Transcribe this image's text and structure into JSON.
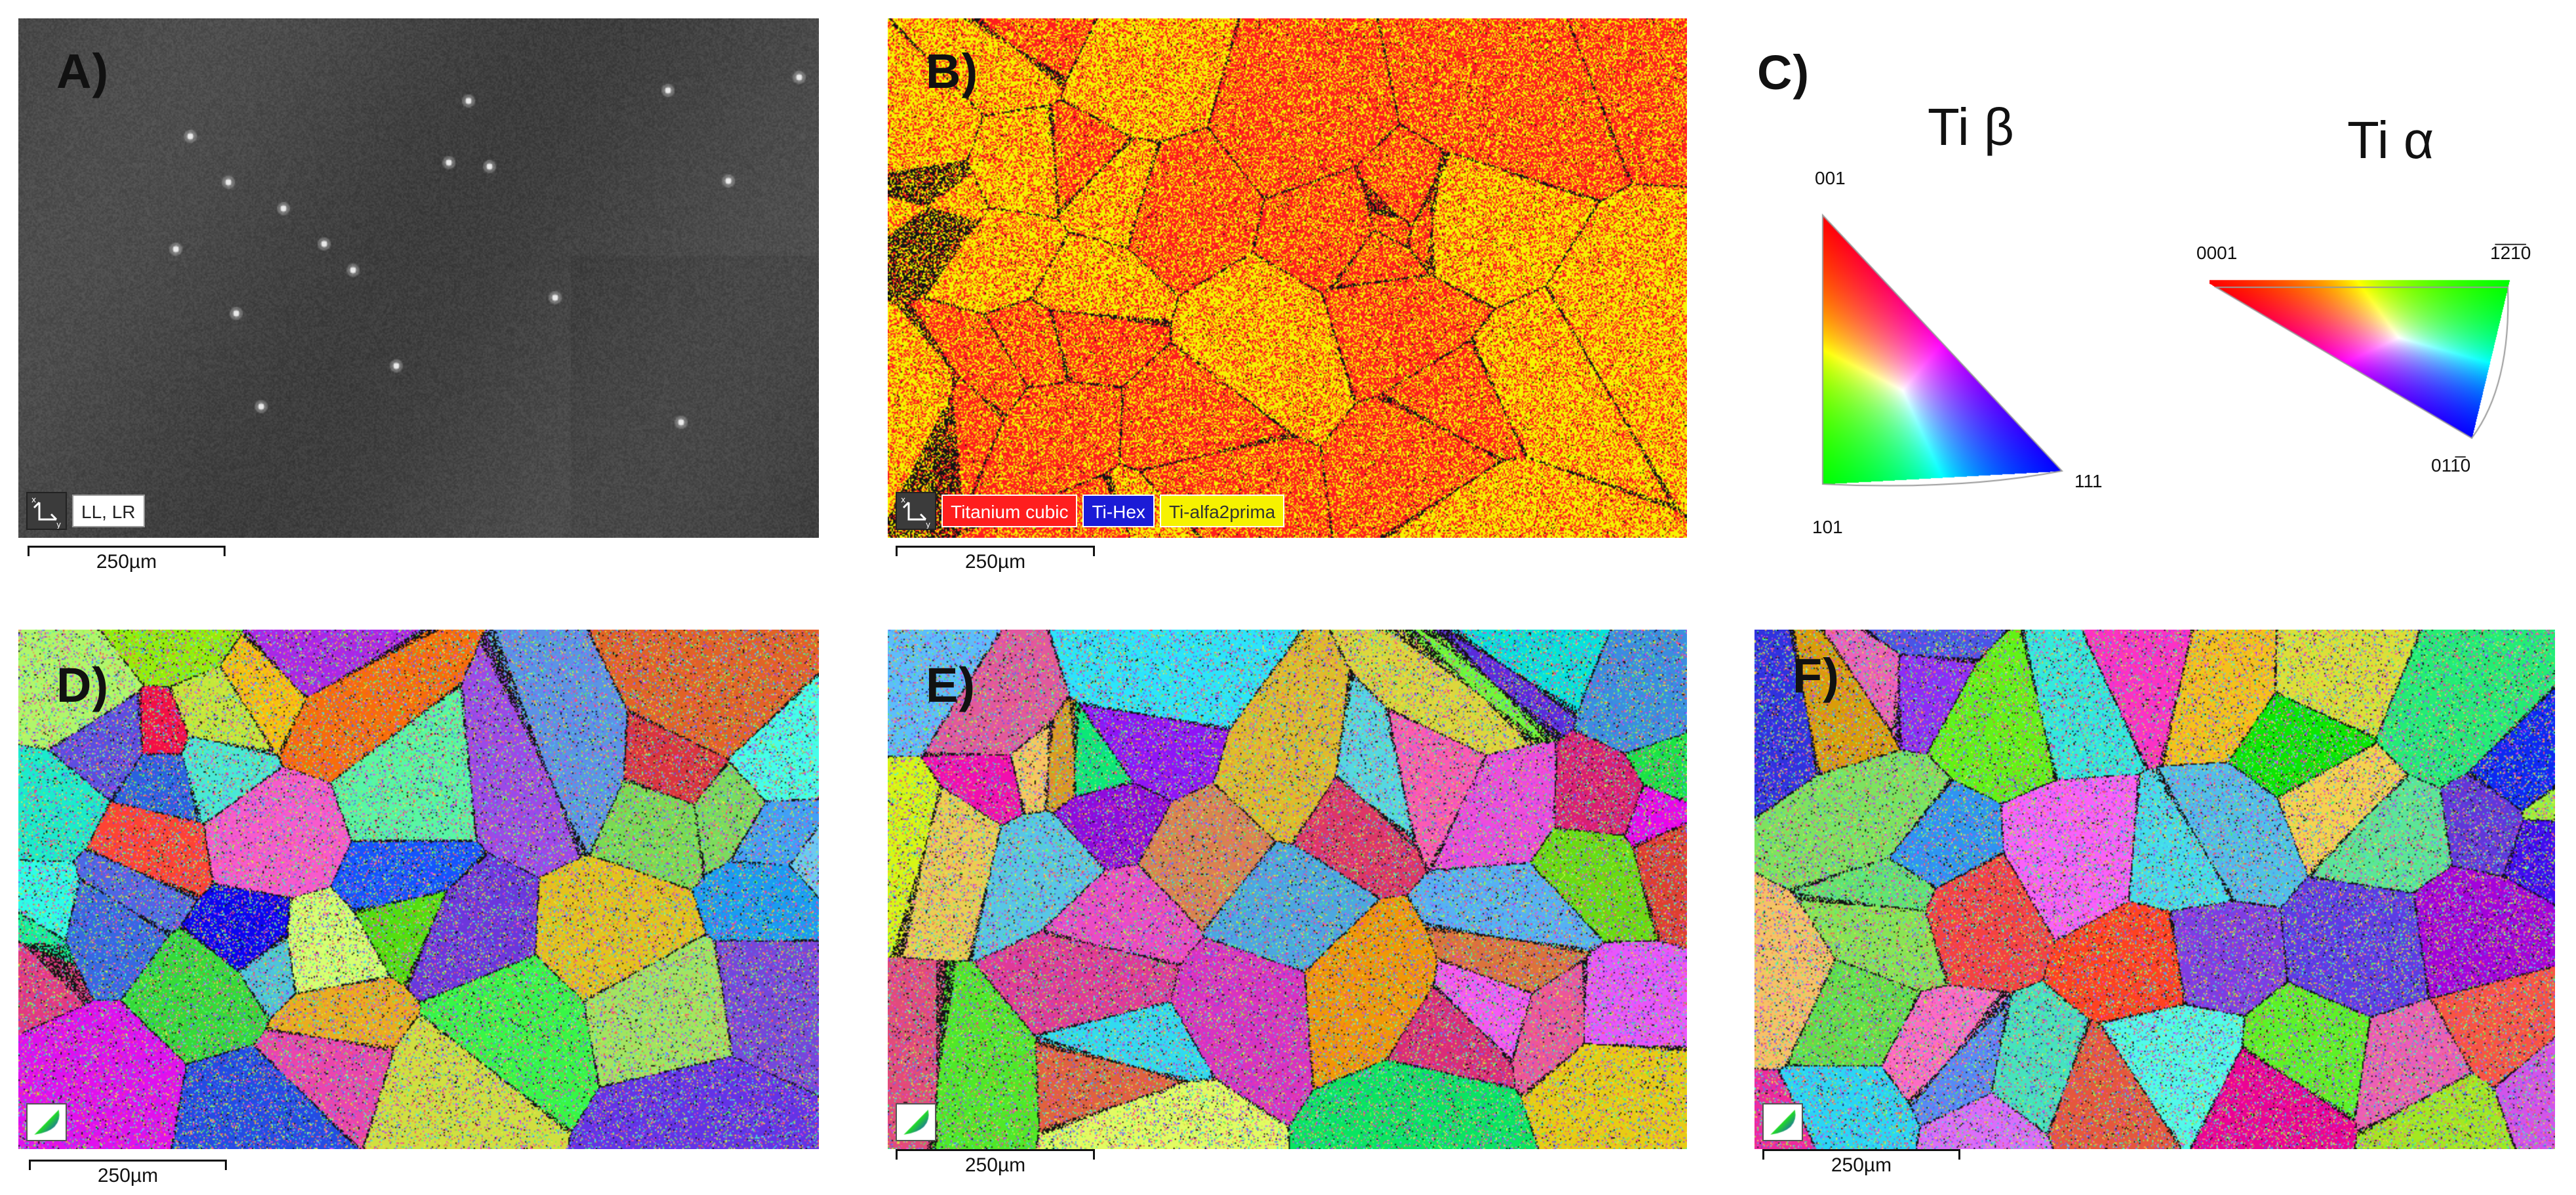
{
  "panels": {
    "a": {
      "letter": "A)",
      "badge": "LL, LR",
      "scale": "250µm"
    },
    "b": {
      "letter": "B)",
      "scale": "250µm",
      "phases": [
        "Titanium cubic",
        "Ti-Hex",
        "Ti-alfa2prima"
      ],
      "phase_colors": [
        "#ff1e1e",
        "#1b1bd6",
        "#f6f200"
      ]
    },
    "c": {
      "letter": "C)",
      "beta": {
        "title": "Ti β",
        "p001": "001",
        "p101": "101",
        "p111": "111"
      },
      "alpha": {
        "title": "Ti α",
        "p0001": "0001",
        "p1210": "1̅2̅​1̅0",
        "p0110": "011̅0"
      }
    },
    "d": {
      "letter": "D)",
      "scale": "250µm"
    },
    "e": {
      "letter": "E)",
      "scale": "250µm"
    },
    "f": {
      "letter": "F)",
      "scale": "250µm"
    }
  },
  "icons": {
    "axis": "axis-xy-icon",
    "ipf": [
      "ipf-beta-icon",
      "ipf-alpha-icon",
      "ipf-key-icon"
    ]
  },
  "colors": {
    "sem_gray": "#4a4a4a",
    "red_phase": "#ff1e1e",
    "yellow_phase": "#f6f200"
  }
}
